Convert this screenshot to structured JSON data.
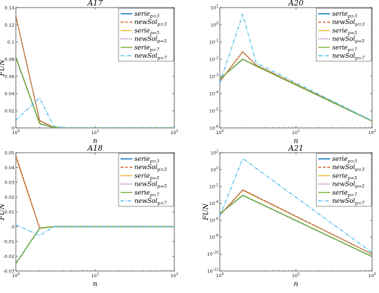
{
  "figure": {
    "background": "#ffffff"
  },
  "legend_labels": [
    {
      "base": "serie",
      "sub": "p=3"
    },
    {
      "base": "newSol",
      "sub": "p=3"
    },
    {
      "base": "serie",
      "sub": "p=5"
    },
    {
      "base": "newSol",
      "sub": "p=5"
    },
    {
      "base": "serie",
      "sub": "p=7"
    },
    {
      "base": "newSol",
      "sub": "p=7"
    }
  ],
  "series_styles": [
    {
      "color": "#0072BD",
      "dash": "",
      "width": 1.5
    },
    {
      "color": "#D95319",
      "dash": "4,2.5",
      "width": 1.4
    },
    {
      "color": "#EDB120",
      "dash": "",
      "width": 1.4
    },
    {
      "color": "#7E2F8E",
      "dash": "1.2,1.8",
      "width": 1.4
    },
    {
      "color": "#77AC30",
      "dash": "",
      "width": 1.4
    },
    {
      "color": "#4DBEEE",
      "dash": "5,2,1.2,2",
      "width": 1.4
    }
  ],
  "chart_data": [
    {
      "type": "line",
      "title": "A17",
      "xlabel": "n",
      "ylabel": "FUN",
      "xscale": "log",
      "yscale": "linear",
      "xlim": [
        1,
        100
      ],
      "ylim": [
        0,
        0.14
      ],
      "xticks": [
        {
          "v": 1,
          "b": "10",
          "e": "0"
        },
        {
          "v": 10,
          "b": "10",
          "e": "1"
        },
        {
          "v": 100,
          "b": "10",
          "e": "2"
        }
      ],
      "yticks": [
        {
          "v": 0,
          "t": "0"
        },
        {
          "v": 0.02,
          "t": "0.02"
        },
        {
          "v": 0.04,
          "t": "0.04"
        },
        {
          "v": 0.06,
          "t": "0.06"
        },
        {
          "v": 0.08,
          "t": "0.08"
        },
        {
          "v": 0.1,
          "t": "0.1"
        },
        {
          "v": 0.12,
          "t": "0.12"
        },
        {
          "v": 0.14,
          "t": "0.14"
        }
      ],
      "legend_position": "top-right",
      "series": [
        {
          "x": [
            1,
            2,
            3,
            4,
            5,
            10,
            20,
            50,
            100
          ],
          "y": [
            0.082,
            0.005,
            0.0005,
            0.0001,
            0,
            0,
            0,
            0,
            0
          ]
        },
        {
          "x": [
            1,
            2,
            3,
            4,
            5,
            10,
            20,
            50,
            100
          ],
          "y": [
            0.13,
            0.0085,
            0.0008,
            0.0001,
            0,
            0,
            0,
            0,
            0
          ]
        },
        {
          "x": [
            1,
            2,
            3,
            4,
            5,
            10,
            20,
            50,
            100
          ],
          "y": [
            0.13,
            0.008,
            0.0008,
            0.0001,
            0,
            0,
            0,
            0,
            0
          ]
        },
        {
          "x": [
            1,
            2,
            3,
            4,
            5,
            10,
            20,
            50,
            100
          ],
          "y": [
            0.13,
            0.0085,
            0.0008,
            0.0001,
            0,
            0,
            0,
            0,
            0
          ]
        },
        {
          "x": [
            1,
            2,
            3,
            4,
            5,
            10,
            20,
            50,
            100
          ],
          "y": [
            0.082,
            0.005,
            0.0005,
            0.0001,
            0,
            0,
            0,
            0,
            0
          ]
        },
        {
          "x": [
            1,
            2,
            3,
            4,
            5,
            10,
            20,
            50,
            100
          ],
          "y": [
            0.009,
            0.035,
            0.002,
            0.0002,
            0,
            0,
            0,
            0,
            0
          ]
        }
      ]
    },
    {
      "type": "line",
      "title": "A20",
      "xlabel": "n",
      "ylabel": "",
      "xscale": "log",
      "yscale": "log",
      "xlim": [
        1,
        100
      ],
      "ylim": [
        1e-06,
        10
      ],
      "xticks": [
        {
          "v": 1,
          "b": "10",
          "e": "0"
        },
        {
          "v": 10,
          "b": "10",
          "e": "1"
        },
        {
          "v": 100,
          "b": "10",
          "e": "2"
        }
      ],
      "yticks": [
        {
          "v": 1e-06,
          "b": "10",
          "e": "-6"
        },
        {
          "v": 1e-05,
          "b": "10",
          "e": "-5"
        },
        {
          "v": 0.0001,
          "b": "10",
          "e": "-4"
        },
        {
          "v": 0.001,
          "b": "10",
          "e": "-3"
        },
        {
          "v": 0.01,
          "b": "10",
          "e": "-2"
        },
        {
          "v": 0.1,
          "b": "10",
          "e": "-1"
        },
        {
          "v": 1,
          "b": "10",
          "e": "0"
        },
        {
          "v": 10,
          "b": "10",
          "e": "1"
        }
      ],
      "legend_position": "top-right",
      "series": [
        {
          "x": [
            1,
            2,
            3,
            100
          ],
          "y": [
            0.0007,
            0.01,
            0.004,
            2.5e-06
          ]
        },
        {
          "x": [
            1,
            2,
            3,
            100
          ],
          "y": [
            0.0005,
            0.027,
            0.0045,
            2.5e-06
          ]
        },
        {
          "x": [
            1,
            2,
            3,
            100
          ],
          "y": [
            0.0005,
            0.026,
            0.0045,
            2.5e-06
          ]
        },
        {
          "x": [
            1,
            2,
            3,
            100
          ],
          "y": [
            0.0005,
            0.027,
            0.0045,
            2.5e-06
          ]
        },
        {
          "x": [
            1,
            2,
            3,
            100
          ],
          "y": [
            0.0007,
            0.01,
            0.004,
            2.5e-06
          ]
        },
        {
          "x": [
            1,
            2,
            3,
            100
          ],
          "y": [
            0.0004,
            4,
            0.006,
            2.6e-06
          ]
        }
      ]
    },
    {
      "type": "line",
      "title": "A18",
      "xlabel": "n",
      "ylabel": "FUN",
      "xscale": "log",
      "yscale": "linear",
      "xlim": [
        1,
        100
      ],
      "ylim": [
        -0.03,
        0.05
      ],
      "xticks": [
        {
          "v": 1,
          "b": "10",
          "e": "0"
        },
        {
          "v": 10,
          "b": "10",
          "e": "1"
        },
        {
          "v": 100,
          "b": "10",
          "e": "2"
        }
      ],
      "yticks": [
        {
          "v": -0.03,
          "t": "-0.03"
        },
        {
          "v": -0.02,
          "t": "-0.02"
        },
        {
          "v": -0.01,
          "t": "-0.01"
        },
        {
          "v": 0,
          "t": "0"
        },
        {
          "v": 0.01,
          "t": "0.01"
        },
        {
          "v": 0.02,
          "t": "0.02"
        },
        {
          "v": 0.03,
          "t": "0.03"
        },
        {
          "v": 0.04,
          "t": "0.04"
        },
        {
          "v": 0.05,
          "t": "0.05"
        }
      ],
      "legend_position": "top-right",
      "series": [
        {
          "x": [
            1,
            2,
            3,
            5,
            10,
            100
          ],
          "y": [
            -0.025,
            -0.001,
            0,
            0,
            0,
            0
          ]
        },
        {
          "x": [
            1,
            2,
            3,
            5,
            10,
            100
          ],
          "y": [
            0.048,
            -0.001,
            0,
            0,
            0,
            0
          ]
        },
        {
          "x": [
            1,
            2,
            3,
            5,
            10,
            100
          ],
          "y": [
            0.047,
            -0.0012,
            0,
            0,
            0,
            0
          ]
        },
        {
          "x": [
            1,
            2,
            3,
            5,
            10,
            100
          ],
          "y": [
            0.048,
            -0.001,
            0,
            0,
            0,
            0
          ]
        },
        {
          "x": [
            1,
            2,
            3,
            5,
            10,
            100
          ],
          "y": [
            -0.025,
            -0.001,
            0,
            0,
            0,
            0
          ]
        },
        {
          "x": [
            1,
            2,
            3,
            5,
            10,
            100
          ],
          "y": [
            0.0012,
            -0.006,
            0,
            0,
            0,
            0
          ]
        }
      ]
    },
    {
      "type": "line",
      "title": "A21",
      "xlabel": "n",
      "ylabel": "FUN",
      "xscale": "log",
      "yscale": "log",
      "xlim": [
        1,
        100
      ],
      "ylim": [
        1e-12,
        100
      ],
      "xticks": [
        {
          "v": 1,
          "b": "10",
          "e": "0"
        },
        {
          "v": 10,
          "b": "10",
          "e": "1"
        },
        {
          "v": 100,
          "b": "10",
          "e": "2"
        }
      ],
      "yticks": [
        {
          "v": 1e-12,
          "b": "10",
          "e": "-12"
        },
        {
          "v": 1e-10,
          "b": "10",
          "e": "-10"
        },
        {
          "v": 1e-08,
          "b": "10",
          "e": "-8"
        },
        {
          "v": 1e-06,
          "b": "10",
          "e": "-6"
        },
        {
          "v": 0.0001,
          "b": "10",
          "e": "-4"
        },
        {
          "v": 0.01,
          "b": "10",
          "e": "-2"
        },
        {
          "v": 1,
          "b": "10",
          "e": "0"
        },
        {
          "v": 100,
          "b": "10",
          "e": "2"
        }
      ],
      "legend_position": "top-right",
      "series": [
        {
          "x": [
            1,
            2,
            100
          ],
          "y": [
            6e-06,
            0.0009,
            5e-11
          ]
        },
        {
          "x": [
            1,
            2,
            100
          ],
          "y": [
            4e-06,
            0.004,
            1e-10
          ]
        },
        {
          "x": [
            1,
            2,
            100
          ],
          "y": [
            4e-06,
            0.0035,
            1e-10
          ]
        },
        {
          "x": [
            1,
            2,
            100
          ],
          "y": [
            4e-06,
            0.004,
            1e-10
          ]
        },
        {
          "x": [
            1,
            2,
            100
          ],
          "y": [
            6e-06,
            0.0009,
            5e-11
          ]
        },
        {
          "x": [
            1,
            2,
            100
          ],
          "y": [
            3e-06,
            20,
            1.5e-10
          ]
        }
      ]
    }
  ]
}
